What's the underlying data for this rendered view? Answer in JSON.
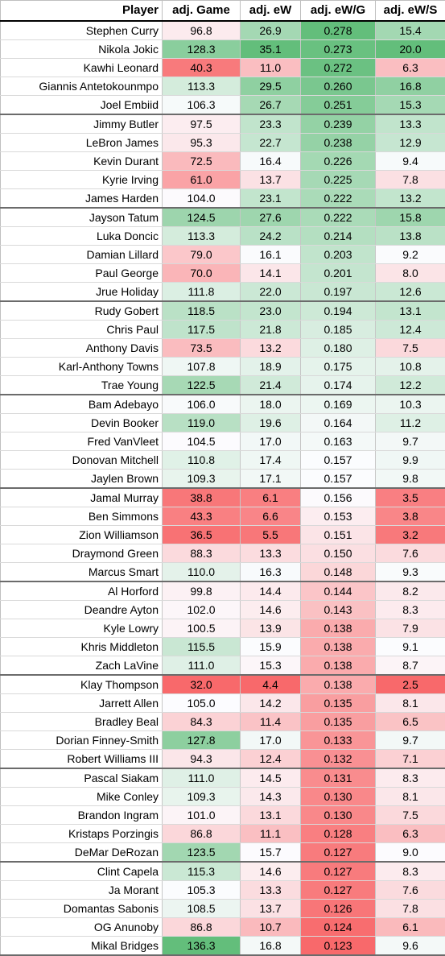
{
  "table": {
    "headers": [
      "Player",
      "adj. Game",
      "adj. eW",
      "adj. eW/G",
      "adj. eW/S"
    ],
    "rows": [
      [
        "Stephen Curry",
        "96.8",
        "26.9",
        "0.278",
        "15.4"
      ],
      [
        "Nikola Jokic",
        "128.3",
        "35.1",
        "0.273",
        "20.0"
      ],
      [
        "Kawhi Leonard",
        "40.3",
        "11.0",
        "0.272",
        "6.3"
      ],
      [
        "Giannis Antetokounmpo",
        "113.3",
        "29.5",
        "0.260",
        "16.8"
      ],
      [
        "Joel Embiid",
        "106.3",
        "26.7",
        "0.251",
        "15.3"
      ],
      [
        "Jimmy Butler",
        "97.5",
        "23.3",
        "0.239",
        "13.3"
      ],
      [
        "LeBron James",
        "95.3",
        "22.7",
        "0.238",
        "12.9"
      ],
      [
        "Kevin Durant",
        "72.5",
        "16.4",
        "0.226",
        "9.4"
      ],
      [
        "Kyrie Irving",
        "61.0",
        "13.7",
        "0.225",
        "7.8"
      ],
      [
        "James Harden",
        "104.0",
        "23.1",
        "0.222",
        "13.2"
      ],
      [
        "Jayson Tatum",
        "124.5",
        "27.6",
        "0.222",
        "15.8"
      ],
      [
        "Luka Doncic",
        "113.3",
        "24.2",
        "0.214",
        "13.8"
      ],
      [
        "Damian Lillard",
        "79.0",
        "16.1",
        "0.203",
        "9.2"
      ],
      [
        "Paul George",
        "70.0",
        "14.1",
        "0.201",
        "8.0"
      ],
      [
        "Jrue Holiday",
        "111.8",
        "22.0",
        "0.197",
        "12.6"
      ],
      [
        "Rudy Gobert",
        "118.5",
        "23.0",
        "0.194",
        "13.1"
      ],
      [
        "Chris Paul",
        "117.5",
        "21.8",
        "0.185",
        "12.4"
      ],
      [
        "Anthony Davis",
        "73.5",
        "13.2",
        "0.180",
        "7.5"
      ],
      [
        "Karl-Anthony Towns",
        "107.8",
        "18.9",
        "0.175",
        "10.8"
      ],
      [
        "Trae Young",
        "122.5",
        "21.4",
        "0.174",
        "12.2"
      ],
      [
        "Bam Adebayo",
        "106.0",
        "18.0",
        "0.169",
        "10.3"
      ],
      [
        "Devin Booker",
        "119.0",
        "19.6",
        "0.164",
        "11.2"
      ],
      [
        "Fred VanVleet",
        "104.5",
        "17.0",
        "0.163",
        "9.7"
      ],
      [
        "Donovan Mitchell",
        "110.8",
        "17.4",
        "0.157",
        "9.9"
      ],
      [
        "Jaylen Brown",
        "109.3",
        "17.1",
        "0.157",
        "9.8"
      ],
      [
        "Jamal Murray",
        "38.8",
        "6.1",
        "0.156",
        "3.5"
      ],
      [
        "Ben Simmons",
        "43.3",
        "6.6",
        "0.153",
        "3.8"
      ],
      [
        "Zion Williamson",
        "36.5",
        "5.5",
        "0.151",
        "3.2"
      ],
      [
        "Draymond Green",
        "88.3",
        "13.3",
        "0.150",
        "7.6"
      ],
      [
        "Marcus Smart",
        "110.0",
        "16.3",
        "0.148",
        "9.3"
      ],
      [
        "Al Horford",
        "99.8",
        "14.4",
        "0.144",
        "8.2"
      ],
      [
        "Deandre Ayton",
        "102.0",
        "14.6",
        "0.143",
        "8.3"
      ],
      [
        "Kyle Lowry",
        "100.5",
        "13.9",
        "0.138",
        "7.9"
      ],
      [
        "Khris Middleton",
        "115.5",
        "15.9",
        "0.138",
        "9.1"
      ],
      [
        "Zach LaVine",
        "111.0",
        "15.3",
        "0.138",
        "8.7"
      ],
      [
        "Klay Thompson",
        "32.0",
        "4.4",
        "0.138",
        "2.5"
      ],
      [
        "Jarrett Allen",
        "105.0",
        "14.2",
        "0.135",
        "8.1"
      ],
      [
        "Bradley Beal",
        "84.3",
        "11.4",
        "0.135",
        "6.5"
      ],
      [
        "Dorian Finney-Smith",
        "127.8",
        "17.0",
        "0.133",
        "9.7"
      ],
      [
        "Robert Williams III",
        "94.3",
        "12.4",
        "0.132",
        "7.1"
      ],
      [
        "Pascal Siakam",
        "111.0",
        "14.5",
        "0.131",
        "8.3"
      ],
      [
        "Mike Conley",
        "109.3",
        "14.3",
        "0.130",
        "8.1"
      ],
      [
        "Brandon Ingram",
        "101.0",
        "13.1",
        "0.130",
        "7.5"
      ],
      [
        "Kristaps Porzingis",
        "86.8",
        "11.1",
        "0.128",
        "6.3"
      ],
      [
        "DeMar DeRozan",
        "123.5",
        "15.7",
        "0.127",
        "9.0"
      ],
      [
        "Clint Capela",
        "115.3",
        "14.6",
        "0.127",
        "8.3"
      ],
      [
        "Ja Morant",
        "105.3",
        "13.3",
        "0.127",
        "7.6"
      ],
      [
        "Domantas Sabonis",
        "108.5",
        "13.7",
        "0.126",
        "7.8"
      ],
      [
        "OG Anunoby",
        "86.8",
        "10.7",
        "0.124",
        "6.1"
      ],
      [
        "Mikal Bridges",
        "136.3",
        "16.8",
        "0.123",
        "9.6"
      ]
    ]
  },
  "colors": {
    "scale_low": "#f8696b",
    "scale_mid": "#fcfcff",
    "scale_high": "#63be7b"
  }
}
